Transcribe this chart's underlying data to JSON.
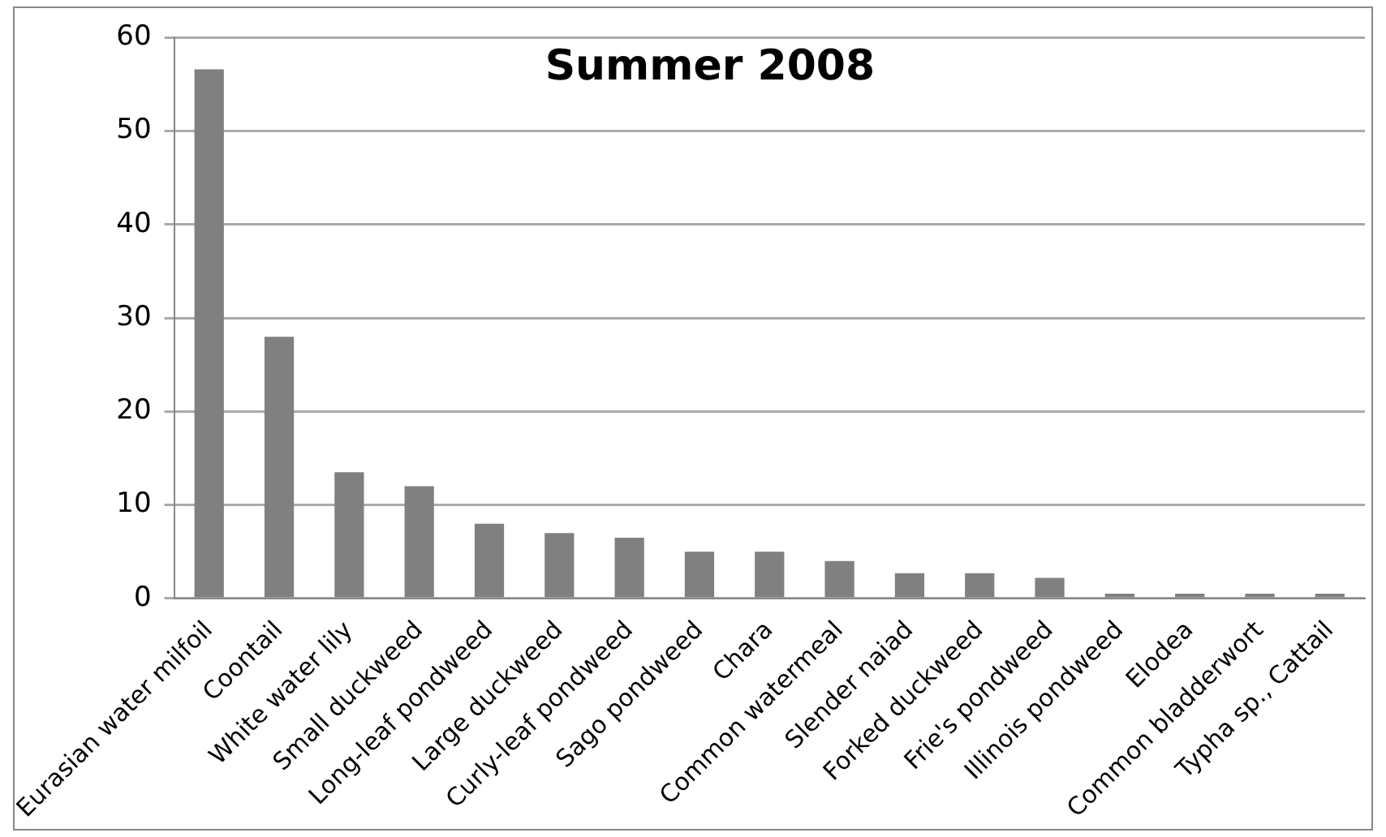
{
  "chart_data": {
    "type": "bar",
    "title": "Summer 2008",
    "categories": [
      "Eurasian water milfoil",
      "Coontail",
      "White water lily",
      "Small duckweed",
      "Long-leaf pondweed",
      "Large duckweed",
      "Curly-leaf pondweed",
      "Sago pondweed",
      "Chara",
      "Common watermeal",
      "Slender naiad",
      "Forked duckweed",
      "Frie's pondweed",
      "Illinois pondweed",
      "Elodea",
      "Common bladderwort",
      "Typha sp., Cattail"
    ],
    "values": [
      56.6,
      28,
      13.5,
      12,
      8,
      7,
      6.5,
      5,
      5,
      4,
      2.7,
      2.7,
      2.2,
      0.5,
      0.5,
      0.5,
      0.5
    ],
    "color": "#808080",
    "ylim": [
      0,
      60
    ],
    "yticks": [
      0,
      10,
      20,
      30,
      40,
      50,
      60
    ],
    "grid": "y"
  }
}
